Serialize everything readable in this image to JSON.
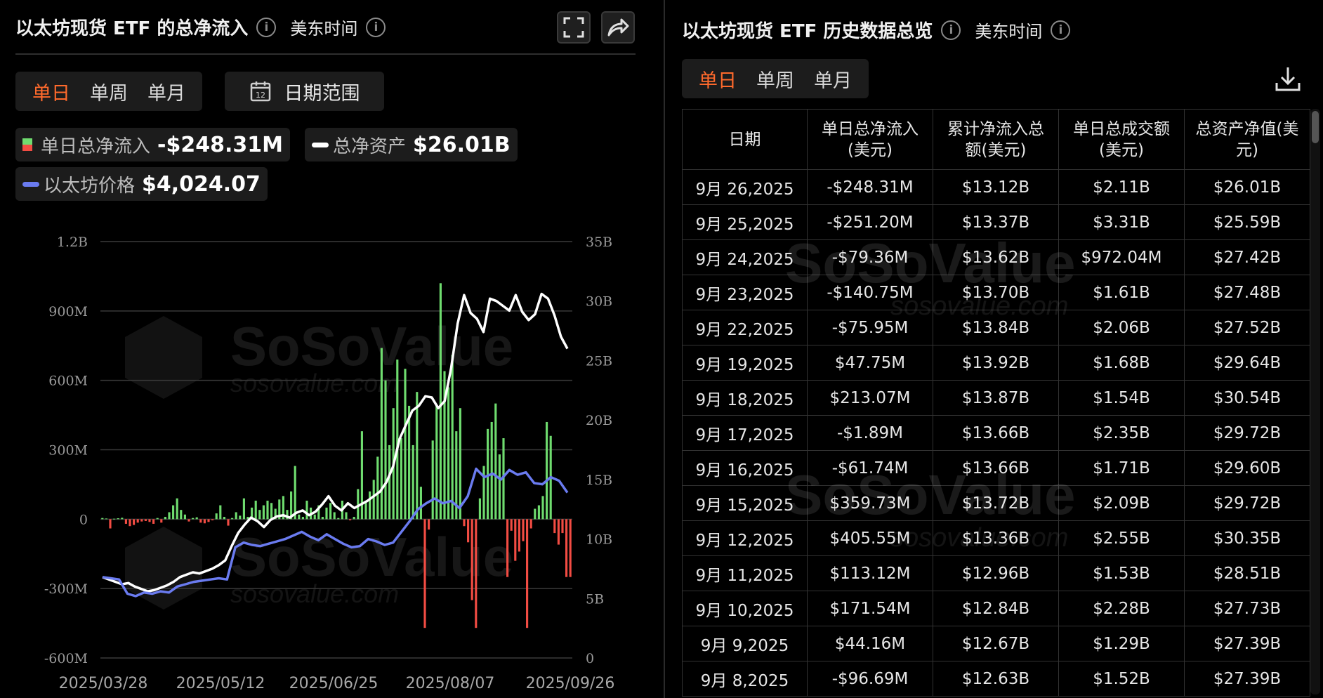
{
  "left": {
    "title": "以太坊现货 ETF 的总净流入",
    "timezone": "美东时间",
    "tabs": [
      {
        "label": "单日",
        "active": true
      },
      {
        "label": "单周",
        "active": false
      },
      {
        "label": "单月",
        "active": false
      }
    ],
    "date_range_label": "日期范围",
    "date_range_icon_day": "12",
    "legend": {
      "daily_flow": {
        "label": "单日总净流入",
        "value": "-$248.31M"
      },
      "net_assets": {
        "label": "总净资产",
        "value": "$26.01B"
      },
      "eth_price": {
        "label": "以太坊价格",
        "value": "$4,024.07"
      }
    },
    "icons": {
      "fullscreen": "fullscreen-icon",
      "share": "share-icon",
      "info": "info-icon",
      "calendar": "calendar-icon"
    }
  },
  "chart_data": {
    "type": "bar",
    "x_ticks": [
      "2025/03/28",
      "2025/05/12",
      "2025/06/25",
      "2025/08/07",
      "2025/09/26"
    ],
    "y_left_ticks": [
      "1.2B",
      "900M",
      "600M",
      "300M",
      "0",
      "-300M",
      "-600M"
    ],
    "y_left_range": [
      -600,
      1200
    ],
    "y_right_ticks": [
      "35B",
      "30B",
      "25B",
      "20B",
      "15B",
      "10B",
      "5B",
      "0"
    ],
    "y_right_range": [
      0,
      35
    ],
    "colors": {
      "positive": "#6fdc6f",
      "negative": "#f24c43",
      "net_assets": "#ffffff",
      "eth_price": "#6a7bf0"
    },
    "series": [
      {
        "name": "单日总净流入",
        "unit": "M USD",
        "values": [
          5,
          3,
          -40,
          2,
          4,
          6,
          -20,
          -30,
          -25,
          -15,
          -10,
          -8,
          -12,
          -20,
          5,
          -15,
          10,
          30,
          60,
          90,
          40,
          20,
          -10,
          5,
          8,
          -15,
          -18,
          -12,
          -5,
          25,
          60,
          10,
          -28,
          5,
          30,
          15,
          90,
          10,
          50,
          80,
          40,
          60,
          80,
          70,
          45,
          85,
          100,
          40,
          120,
          230,
          20,
          10,
          80,
          50,
          20,
          60,
          10,
          50,
          70,
          30,
          5,
          80,
          30,
          -5,
          10,
          130,
          380,
          70,
          120,
          170,
          270,
          740,
          600,
          320,
          480,
          690,
          350,
          650,
          490,
          320,
          550,
          140,
          -470,
          -45,
          340,
          490,
          1020,
          640,
          570,
          710,
          380,
          480,
          -30,
          -100,
          -350,
          -470,
          90,
          230,
          390,
          420,
          500,
          280,
          350,
          -250,
          -50,
          -180,
          -140,
          -95,
          -470,
          -40,
          45,
          60,
          100,
          420,
          360,
          -60,
          -110,
          -60,
          -250,
          -250
        ]
      },
      {
        "name": "总净资产",
        "unit": "B USD",
        "values": [
          6.8,
          6.6,
          6.4,
          6.2,
          6.3,
          6.0,
          5.8,
          5.6,
          5.7,
          5.9,
          6.1,
          6.4,
          6.8,
          7.0,
          7.2,
          7.1,
          7.3,
          7.5,
          7.8,
          8.2,
          9.4,
          10.5,
          11.2,
          11.8,
          11.5,
          11.0,
          11.6,
          11.9,
          12.0,
          11.8,
          12.2,
          12.4,
          12.0,
          12.3,
          12.9,
          13.6,
          12.8,
          12.4,
          13.0,
          12.6,
          12.9,
          13.2,
          13.6,
          14.0,
          14.8,
          16.1,
          18.4,
          19.6,
          20.8,
          21.2,
          22.0,
          21.9,
          21.0,
          21.6,
          24.4,
          28.1,
          30.5,
          29.0,
          28.5,
          27.4,
          30.2,
          30.0,
          29.6,
          29.2,
          30.5,
          29.1,
          28.4,
          28.9,
          30.6,
          30.2,
          28.8,
          27.0,
          26.0
        ]
      },
      {
        "name": "以太坊价格",
        "unit": "USD"
      }
    ]
  },
  "right": {
    "title": "以太坊现货 ETF 历史数据总览",
    "timezone": "美东时间",
    "tabs": [
      {
        "label": "单日",
        "active": true
      },
      {
        "label": "单周",
        "active": false
      },
      {
        "label": "单月",
        "active": false
      }
    ],
    "download_icon": "download-icon",
    "columns": [
      "日期",
      "单日总净流入\n(美元)",
      "累计净流入总\n额(美元)",
      "单日总成交额\n(美元)",
      "总资产净值(美\n元)"
    ],
    "rows": [
      {
        "date": "9月 26,2025",
        "flow": "-$248.31M",
        "sign": "neg",
        "cum": "$13.12B",
        "vol": "$2.11B",
        "nav": "$26.01B"
      },
      {
        "date": "9月 25,2025",
        "flow": "-$251.20M",
        "sign": "neg",
        "cum": "$13.37B",
        "vol": "$3.31B",
        "nav": "$25.59B"
      },
      {
        "date": "9月 24,2025",
        "flow": "-$79.36M",
        "sign": "neg",
        "cum": "$13.62B",
        "vol": "$972.04M",
        "nav": "$27.42B"
      },
      {
        "date": "9月 23,2025",
        "flow": "-$140.75M",
        "sign": "neg",
        "cum": "$13.70B",
        "vol": "$1.61B",
        "nav": "$27.48B"
      },
      {
        "date": "9月 22,2025",
        "flow": "-$75.95M",
        "sign": "neg",
        "cum": "$13.84B",
        "vol": "$2.06B",
        "nav": "$27.52B"
      },
      {
        "date": "9月 19,2025",
        "flow": "$47.75M",
        "sign": "pos",
        "cum": "$13.92B",
        "vol": "$1.68B",
        "nav": "$29.64B"
      },
      {
        "date": "9月 18,2025",
        "flow": "$213.07M",
        "sign": "pos",
        "cum": "$13.87B",
        "vol": "$1.54B",
        "nav": "$30.54B"
      },
      {
        "date": "9月 17,2025",
        "flow": "-$1.89M",
        "sign": "neg",
        "cum": "$13.66B",
        "vol": "$2.35B",
        "nav": "$29.72B"
      },
      {
        "date": "9月 16,2025",
        "flow": "-$61.74M",
        "sign": "neg",
        "cum": "$13.66B",
        "vol": "$1.71B",
        "nav": "$29.60B"
      },
      {
        "date": "9月 15,2025",
        "flow": "$359.73M",
        "sign": "pos",
        "cum": "$13.72B",
        "vol": "$2.09B",
        "nav": "$29.72B"
      },
      {
        "date": "9月 12,2025",
        "flow": "$405.55M",
        "sign": "pos",
        "cum": "$13.36B",
        "vol": "$2.55B",
        "nav": "$30.35B"
      },
      {
        "date": "9月 11,2025",
        "flow": "$113.12M",
        "sign": "pos",
        "cum": "$12.96B",
        "vol": "$1.53B",
        "nav": "$28.51B"
      },
      {
        "date": "9月 10,2025",
        "flow": "$171.54M",
        "sign": "pos",
        "cum": "$12.84B",
        "vol": "$2.28B",
        "nav": "$27.73B"
      },
      {
        "date": "9月 9,2025",
        "flow": "$44.16M",
        "sign": "pos",
        "cum": "$12.67B",
        "vol": "$1.29B",
        "nav": "$27.39B"
      },
      {
        "date": "9月 8,2025",
        "flow": "-$96.69M",
        "sign": "neg",
        "cum": "$12.63B",
        "vol": "$1.52B",
        "nav": "$27.39B"
      }
    ]
  },
  "watermark": {
    "brand": "SoSoValue",
    "url": "sosovalue.com"
  }
}
